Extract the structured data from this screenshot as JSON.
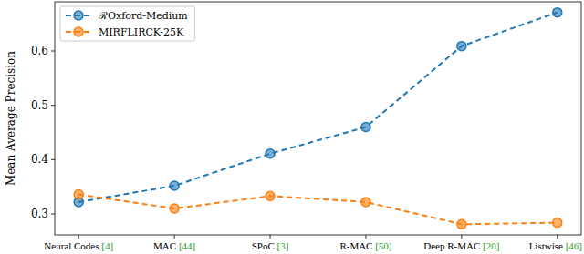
{
  "chart_data": {
    "type": "line",
    "y_label": "Mean Average Precision",
    "categories": [
      "Neural Codes [4]",
      "MAC [44]",
      "SPoC [3]",
      "R-MAC [50]",
      "Deep R-MAC [20]",
      "Listwise [46]"
    ],
    "series": [
      {
        "name": "ℛOxford-Medium",
        "color": "#1f77b4",
        "marker": "circle",
        "line_style": "dashed",
        "values": [
          0.322,
          0.352,
          0.411,
          0.46,
          0.609,
          0.671
        ]
      },
      {
        "name": "MIRFLIRCK-25K",
        "color": "#ff7f0e",
        "marker": "circle",
        "line_style": "dashed",
        "values": [
          0.336,
          0.31,
          0.333,
          0.322,
          0.281,
          0.284
        ]
      }
    ],
    "ylim": [
      0.2615,
      0.6905
    ],
    "yticks": [
      0.3,
      0.4,
      0.5,
      0.6
    ],
    "grid": false,
    "legend": "upper left"
  }
}
